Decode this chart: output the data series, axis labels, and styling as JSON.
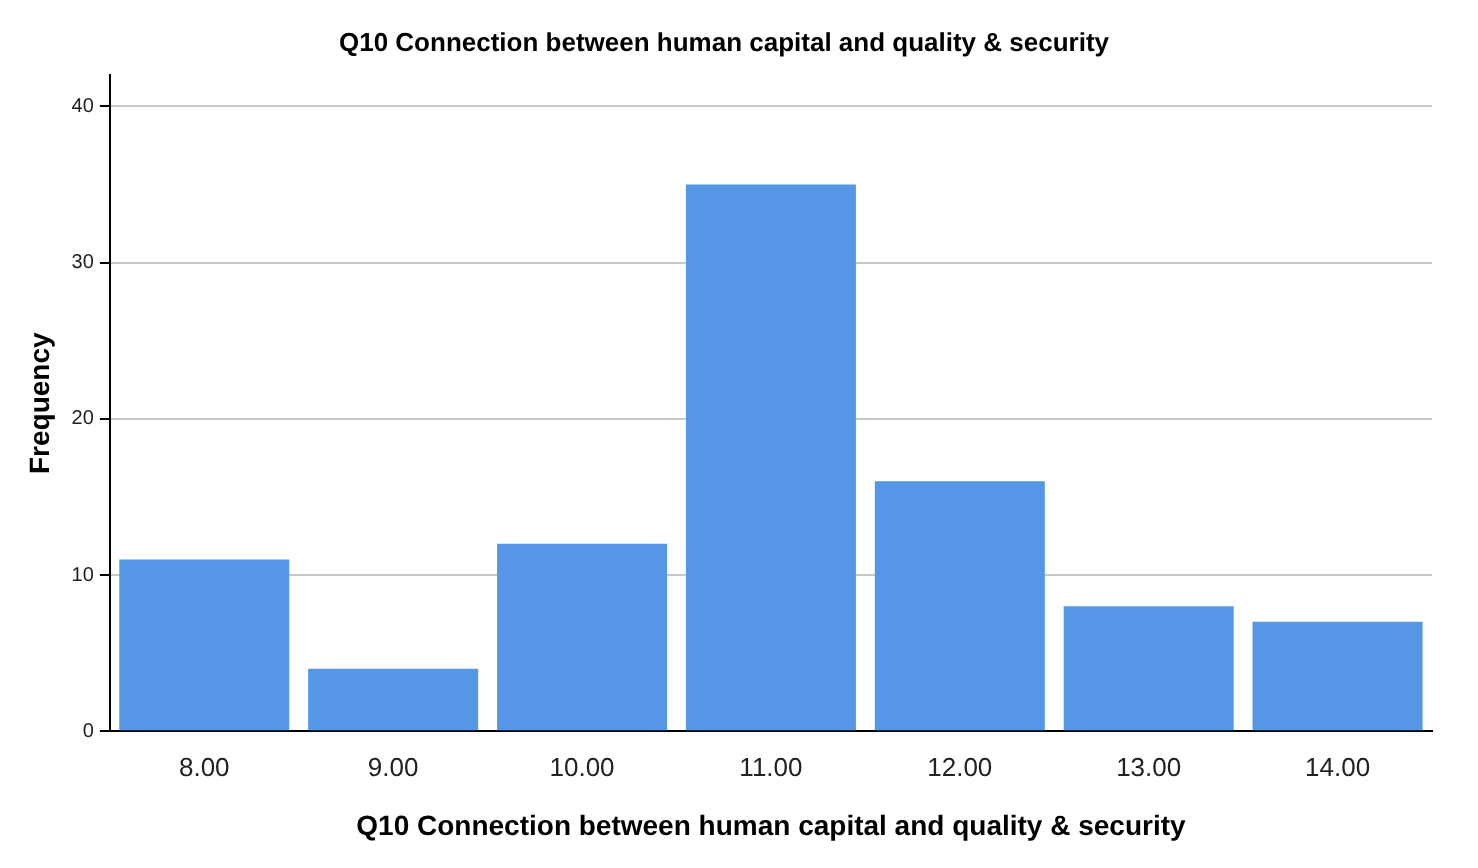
{
  "chart_data": {
    "type": "bar",
    "title": "Q10 Connection between human capital and quality & security",
    "xlabel": "Q10 Connection between human capital and quality & security",
    "ylabel": "Frequency",
    "categories": [
      "8.00",
      "9.00",
      "10.00",
      "11.00",
      "12.00",
      "13.00",
      "14.00"
    ],
    "values": [
      11,
      4,
      12,
      35,
      16,
      8,
      7
    ],
    "color": "#5596e6",
    "ylim": [
      0,
      42
    ],
    "yticks": [
      0,
      10,
      20,
      30,
      40
    ],
    "grid": "y",
    "legend": false
  }
}
